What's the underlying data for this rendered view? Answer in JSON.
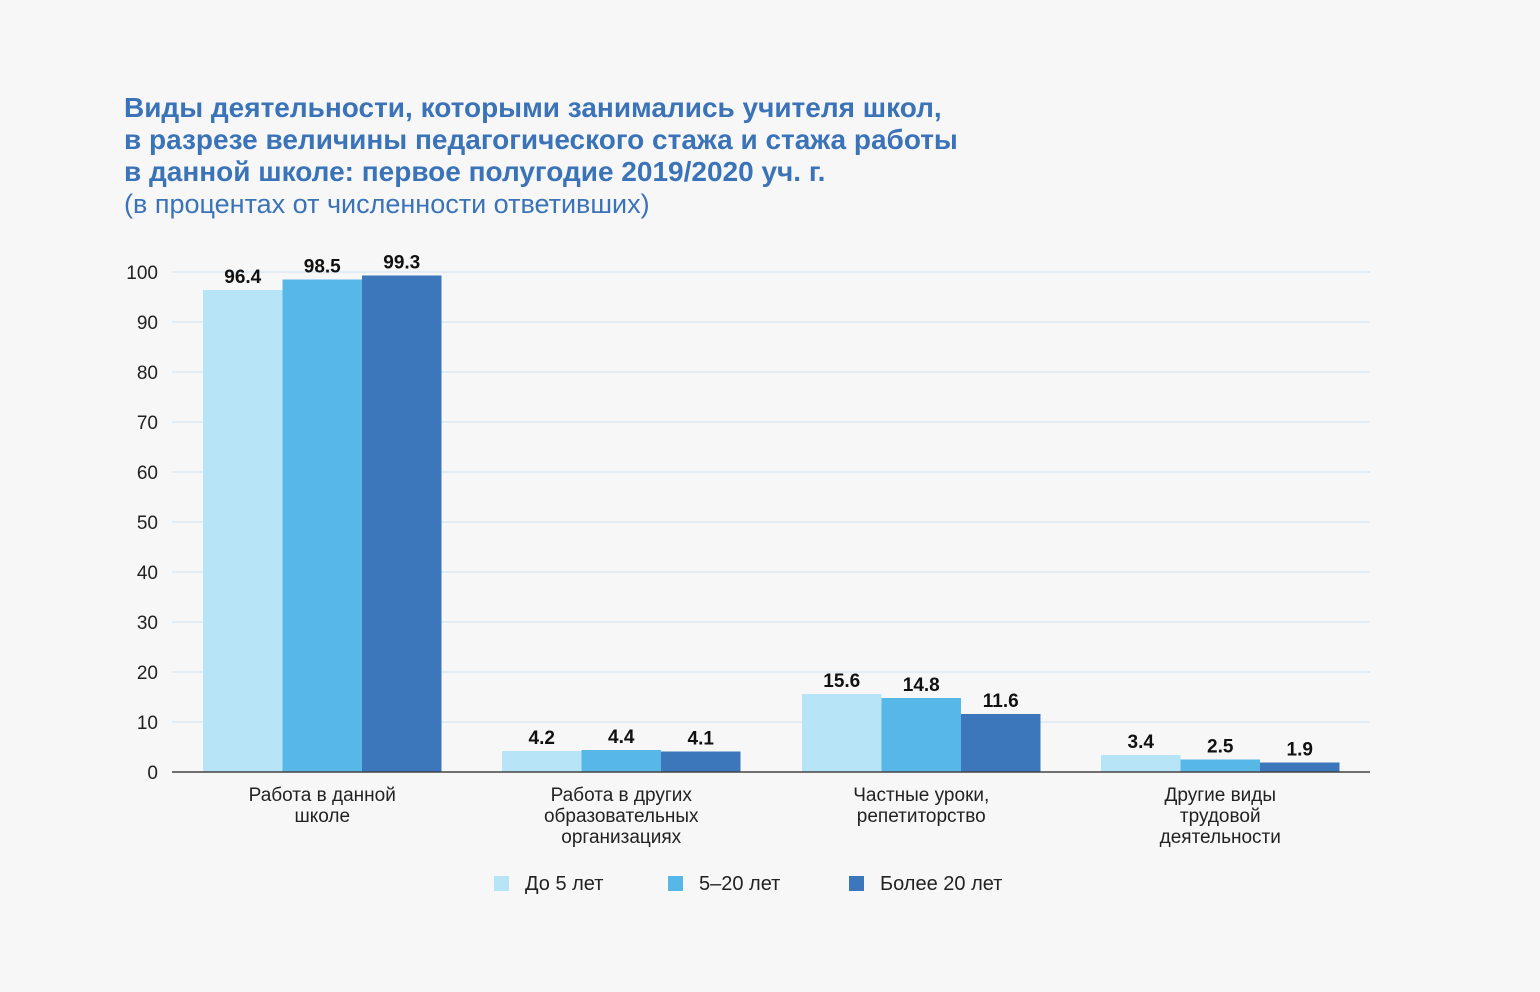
{
  "title": {
    "line1": "Виды деятельности, которыми занимались учителя школ,",
    "line2": "в разрезе величины педагогического стажа и стажа работы",
    "line3": "в данной школе: первое полугодие 2019/2020 уч. г.",
    "subtitle": "(в процентах от численности ответивших)"
  },
  "chart_data": {
    "type": "bar",
    "categories": [
      [
        "Работа в данной",
        "школе"
      ],
      [
        "Работа в других",
        "образовательных",
        "организациях"
      ],
      [
        "Частные уроки,",
        "репетиторство"
      ],
      [
        "Другие виды",
        "трудовой",
        "деятельности"
      ]
    ],
    "series": [
      {
        "name": "До 5 лет",
        "color": "#b7e4f7",
        "values": [
          96.4,
          4.2,
          15.6,
          3.4
        ]
      },
      {
        "name": "5–20 лет",
        "color": "#57b8e8",
        "values": [
          98.5,
          4.4,
          14.8,
          2.5
        ]
      },
      {
        "name": "Более 20 лет",
        "color": "#3c76bb",
        "values": [
          99.3,
          4.1,
          11.6,
          1.9
        ]
      }
    ],
    "ylim": [
      0,
      100
    ],
    "yticks": [
      0,
      10,
      20,
      30,
      40,
      50,
      60,
      70,
      80,
      90,
      100
    ],
    "grid": true,
    "legend_position": "bottom",
    "data_labels": true
  }
}
